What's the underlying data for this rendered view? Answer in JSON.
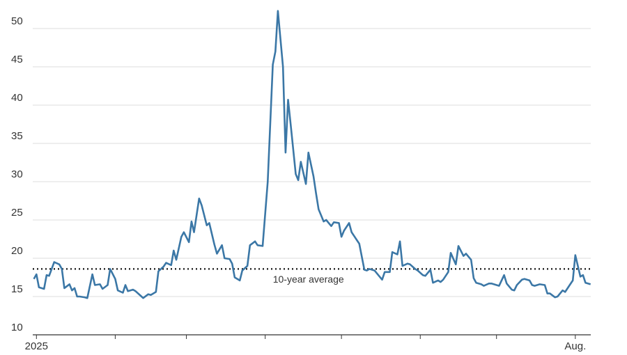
{
  "chart_data": {
    "type": "line",
    "x": [
      -1,
      0,
      1,
      3,
      4,
      5,
      7,
      9,
      10,
      11,
      13,
      14,
      15,
      16,
      17,
      19,
      20,
      22,
      23,
      25,
      26,
      28,
      29,
      31,
      32,
      34,
      35,
      36,
      38,
      39,
      41,
      42,
      44,
      45,
      47,
      48,
      50,
      51,
      53,
      54,
      55,
      57,
      58,
      60,
      61,
      62,
      64,
      65,
      67,
      68,
      70,
      71,
      73,
      74,
      76,
      77,
      78,
      80,
      81,
      83,
      84,
      86,
      87,
      89,
      91,
      93,
      94,
      95,
      97,
      98,
      99,
      100,
      102,
      103,
      104,
      106,
      107,
      109,
      110,
      111,
      113,
      114,
      116,
      117,
      119,
      120,
      121,
      123,
      124,
      126,
      127,
      129,
      130,
      131,
      133,
      135,
      136,
      137,
      139,
      140,
      142,
      143,
      144,
      146,
      147,
      149,
      150,
      152,
      153,
      155,
      156,
      158,
      159,
      160,
      162,
      163,
      165,
      166,
      168,
      169,
      171,
      172,
      173,
      175,
      176,
      178,
      179,
      181,
      182,
      184,
      185,
      187,
      188,
      189,
      191,
      192,
      194,
      195,
      196,
      198,
      200,
      201,
      202,
      204,
      205,
      207,
      208,
      210,
      211,
      212,
      214,
      215,
      216,
      218
    ],
    "series": [
      {
        "color": "#3b77a6",
        "values": [
          17.3,
          17.9,
          16.2,
          16.0,
          17.8,
          17.7,
          19.5,
          19.2,
          18.6,
          16.1,
          16.6,
          15.8,
          16.1,
          15.0,
          15.0,
          14.9,
          14.8,
          17.9,
          16.5,
          16.6,
          16.0,
          16.5,
          18.6,
          17.3,
          15.8,
          15.5,
          16.5,
          15.7,
          15.9,
          15.7,
          15.1,
          14.8,
          15.3,
          15.2,
          15.6,
          18.3,
          18.9,
          19.4,
          19.1,
          21.0,
          19.8,
          22.8,
          23.4,
          22.1,
          24.8,
          23.4,
          27.8,
          26.9,
          24.3,
          24.6,
          21.8,
          20.6,
          21.7,
          20.0,
          19.9,
          19.3,
          17.5,
          17.1,
          18.4,
          19.0,
          21.7,
          22.2,
          21.7,
          21.6,
          30.0,
          45.3,
          47.0,
          52.3,
          45.0,
          33.8,
          40.7,
          37.5,
          31.0,
          30.2,
          32.6,
          29.7,
          33.8,
          30.7,
          28.5,
          26.4,
          24.8,
          25.0,
          24.2,
          24.7,
          24.6,
          22.8,
          23.6,
          24.6,
          23.4,
          22.4,
          21.9,
          18.5,
          18.4,
          18.6,
          18.4,
          17.6,
          17.2,
          18.2,
          18.2,
          20.8,
          20.5,
          22.2,
          19.0,
          19.3,
          19.2,
          18.6,
          18.4,
          17.8,
          17.7,
          18.5,
          16.8,
          17.1,
          16.9,
          17.2,
          18.2,
          20.7,
          19.2,
          21.6,
          20.3,
          20.6,
          19.8,
          17.4,
          16.8,
          16.6,
          16.4,
          16.7,
          16.7,
          16.5,
          16.4,
          17.8,
          16.7,
          15.9,
          15.8,
          16.5,
          17.2,
          17.3,
          17.1,
          16.5,
          16.4,
          16.6,
          16.5,
          15.4,
          15.4,
          14.9,
          15.0,
          15.8,
          15.6,
          16.6,
          17.1,
          20.4,
          17.6,
          17.8,
          16.8,
          16.6
        ]
      }
    ],
    "average": {
      "value": 18.6,
      "label": "10-year average"
    },
    "xlim": [
      -2,
      220
    ],
    "xticks": [
      {
        "value": 0,
        "label": "2025"
      },
      {
        "value": 212,
        "label": "Aug."
      }
    ],
    "xtick_marks": [
      0,
      31,
      59,
      90,
      120,
      151,
      181,
      212
    ],
    "ylim": [
      10,
      52.5
    ],
    "yticks": [
      10,
      15,
      20,
      25,
      30,
      35,
      40,
      45,
      50
    ],
    "grid": true
  }
}
